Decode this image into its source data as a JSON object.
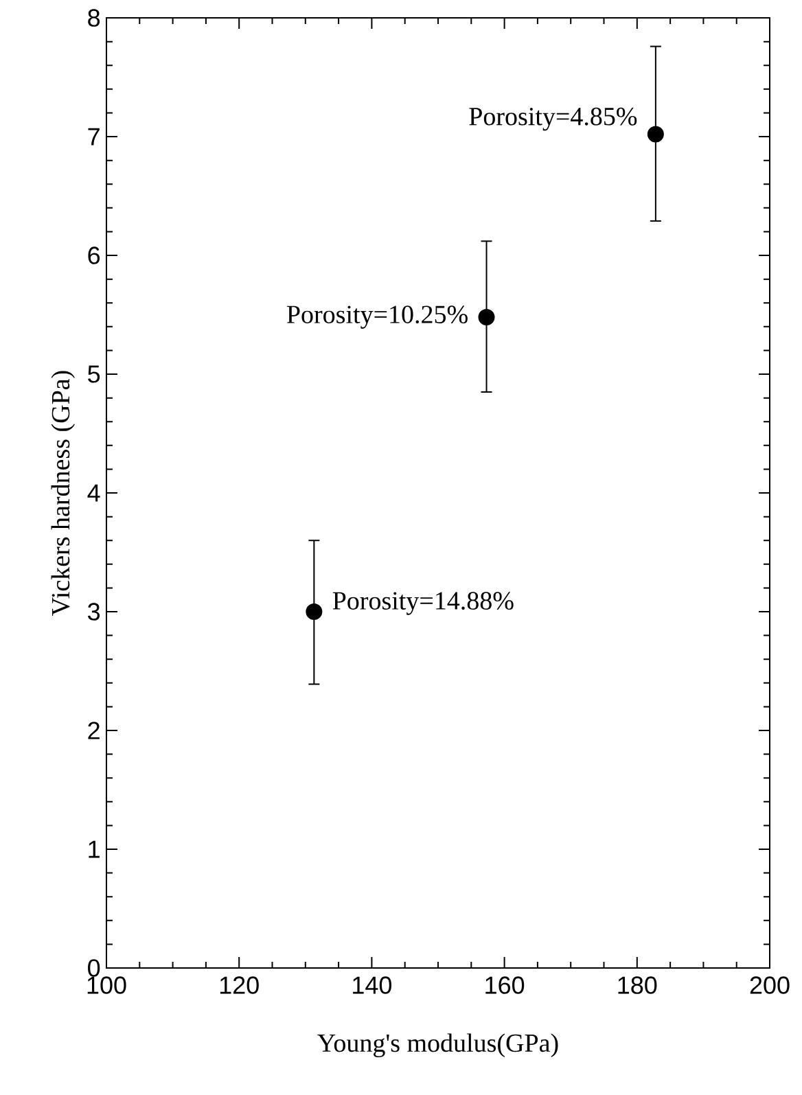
{
  "chart_data": {
    "type": "scatter",
    "xlabel": "Young's modulus(GPa)",
    "ylabel": "Vickers hardness (GPa)",
    "x": [
      131.3,
      157.3,
      182.8
    ],
    "series": [
      {
        "color": "#000000",
        "values": [
          3.0,
          5.48,
          7.02
        ],
        "errors": [
          [
            2.39,
            3.6
          ],
          [
            4.85,
            6.12
          ],
          [
            6.29,
            7.76
          ]
        ]
      }
    ],
    "marker": "circle",
    "xlim": [
      100,
      200
    ],
    "xticks": [
      100,
      120,
      140,
      160,
      180,
      200
    ],
    "ylim": [
      0,
      8
    ],
    "yticks": [
      0,
      1,
      2,
      3,
      4,
      5,
      6,
      7,
      8
    ],
    "grid": false,
    "annotations": [
      {
        "text": "Porosity=14.88%",
        "x": 131.3,
        "y": 3.0
      },
      {
        "text": "Porosity=10.25%",
        "x": 157.3,
        "y": 5.48
      },
      {
        "text": "Porosity=4.85%",
        "x": 182.8,
        "y": 7.02
      }
    ]
  }
}
